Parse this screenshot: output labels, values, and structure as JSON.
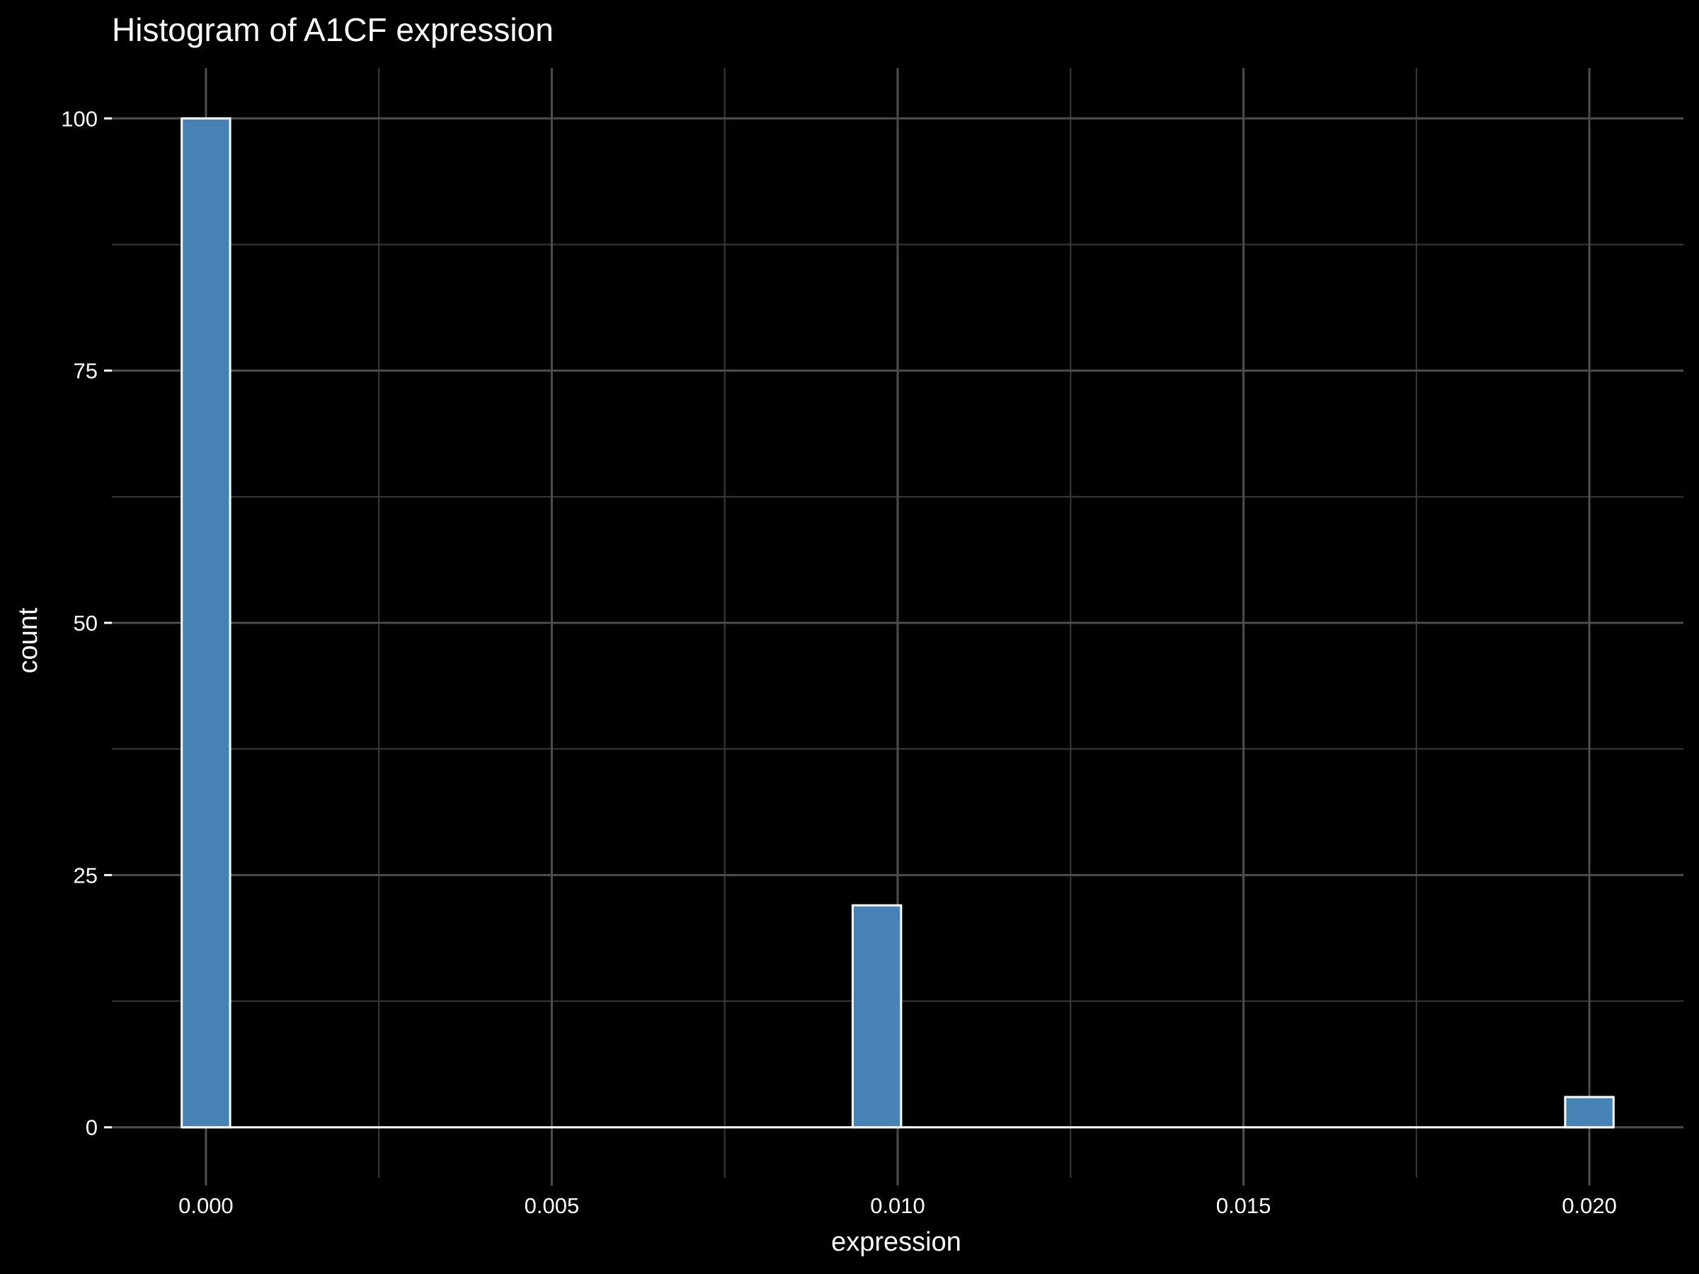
{
  "chart_data": {
    "type": "bar",
    "title": "Histogram of A1CF expression",
    "xlabel": "expression",
    "ylabel": "count",
    "x_ticks": [
      "0.000",
      "0.005",
      "0.010",
      "0.015",
      "0.020"
    ],
    "x_tick_values": [
      0.0,
      0.005,
      0.01,
      0.015,
      0.02
    ],
    "y_ticks": [
      "0",
      "25",
      "50",
      "75",
      "100"
    ],
    "y_tick_values": [
      0,
      25,
      50,
      75,
      100
    ],
    "xlim": [
      -0.00136,
      0.02136
    ],
    "ylim": [
      -5,
      105
    ],
    "bin_width": 0.0007,
    "bins": [
      {
        "center": 0.0,
        "count": 100
      },
      {
        "center": 0.0097,
        "count": 22
      },
      {
        "center": 0.02,
        "count": 3
      }
    ],
    "grid": true,
    "colors": {
      "background": "#000000",
      "bar_fill": "#4682b4",
      "bar_stroke": "#ffffff",
      "grid_major": "#4d4d4d",
      "grid_minor": "#3a3a3a",
      "text": "#ffffff"
    }
  }
}
